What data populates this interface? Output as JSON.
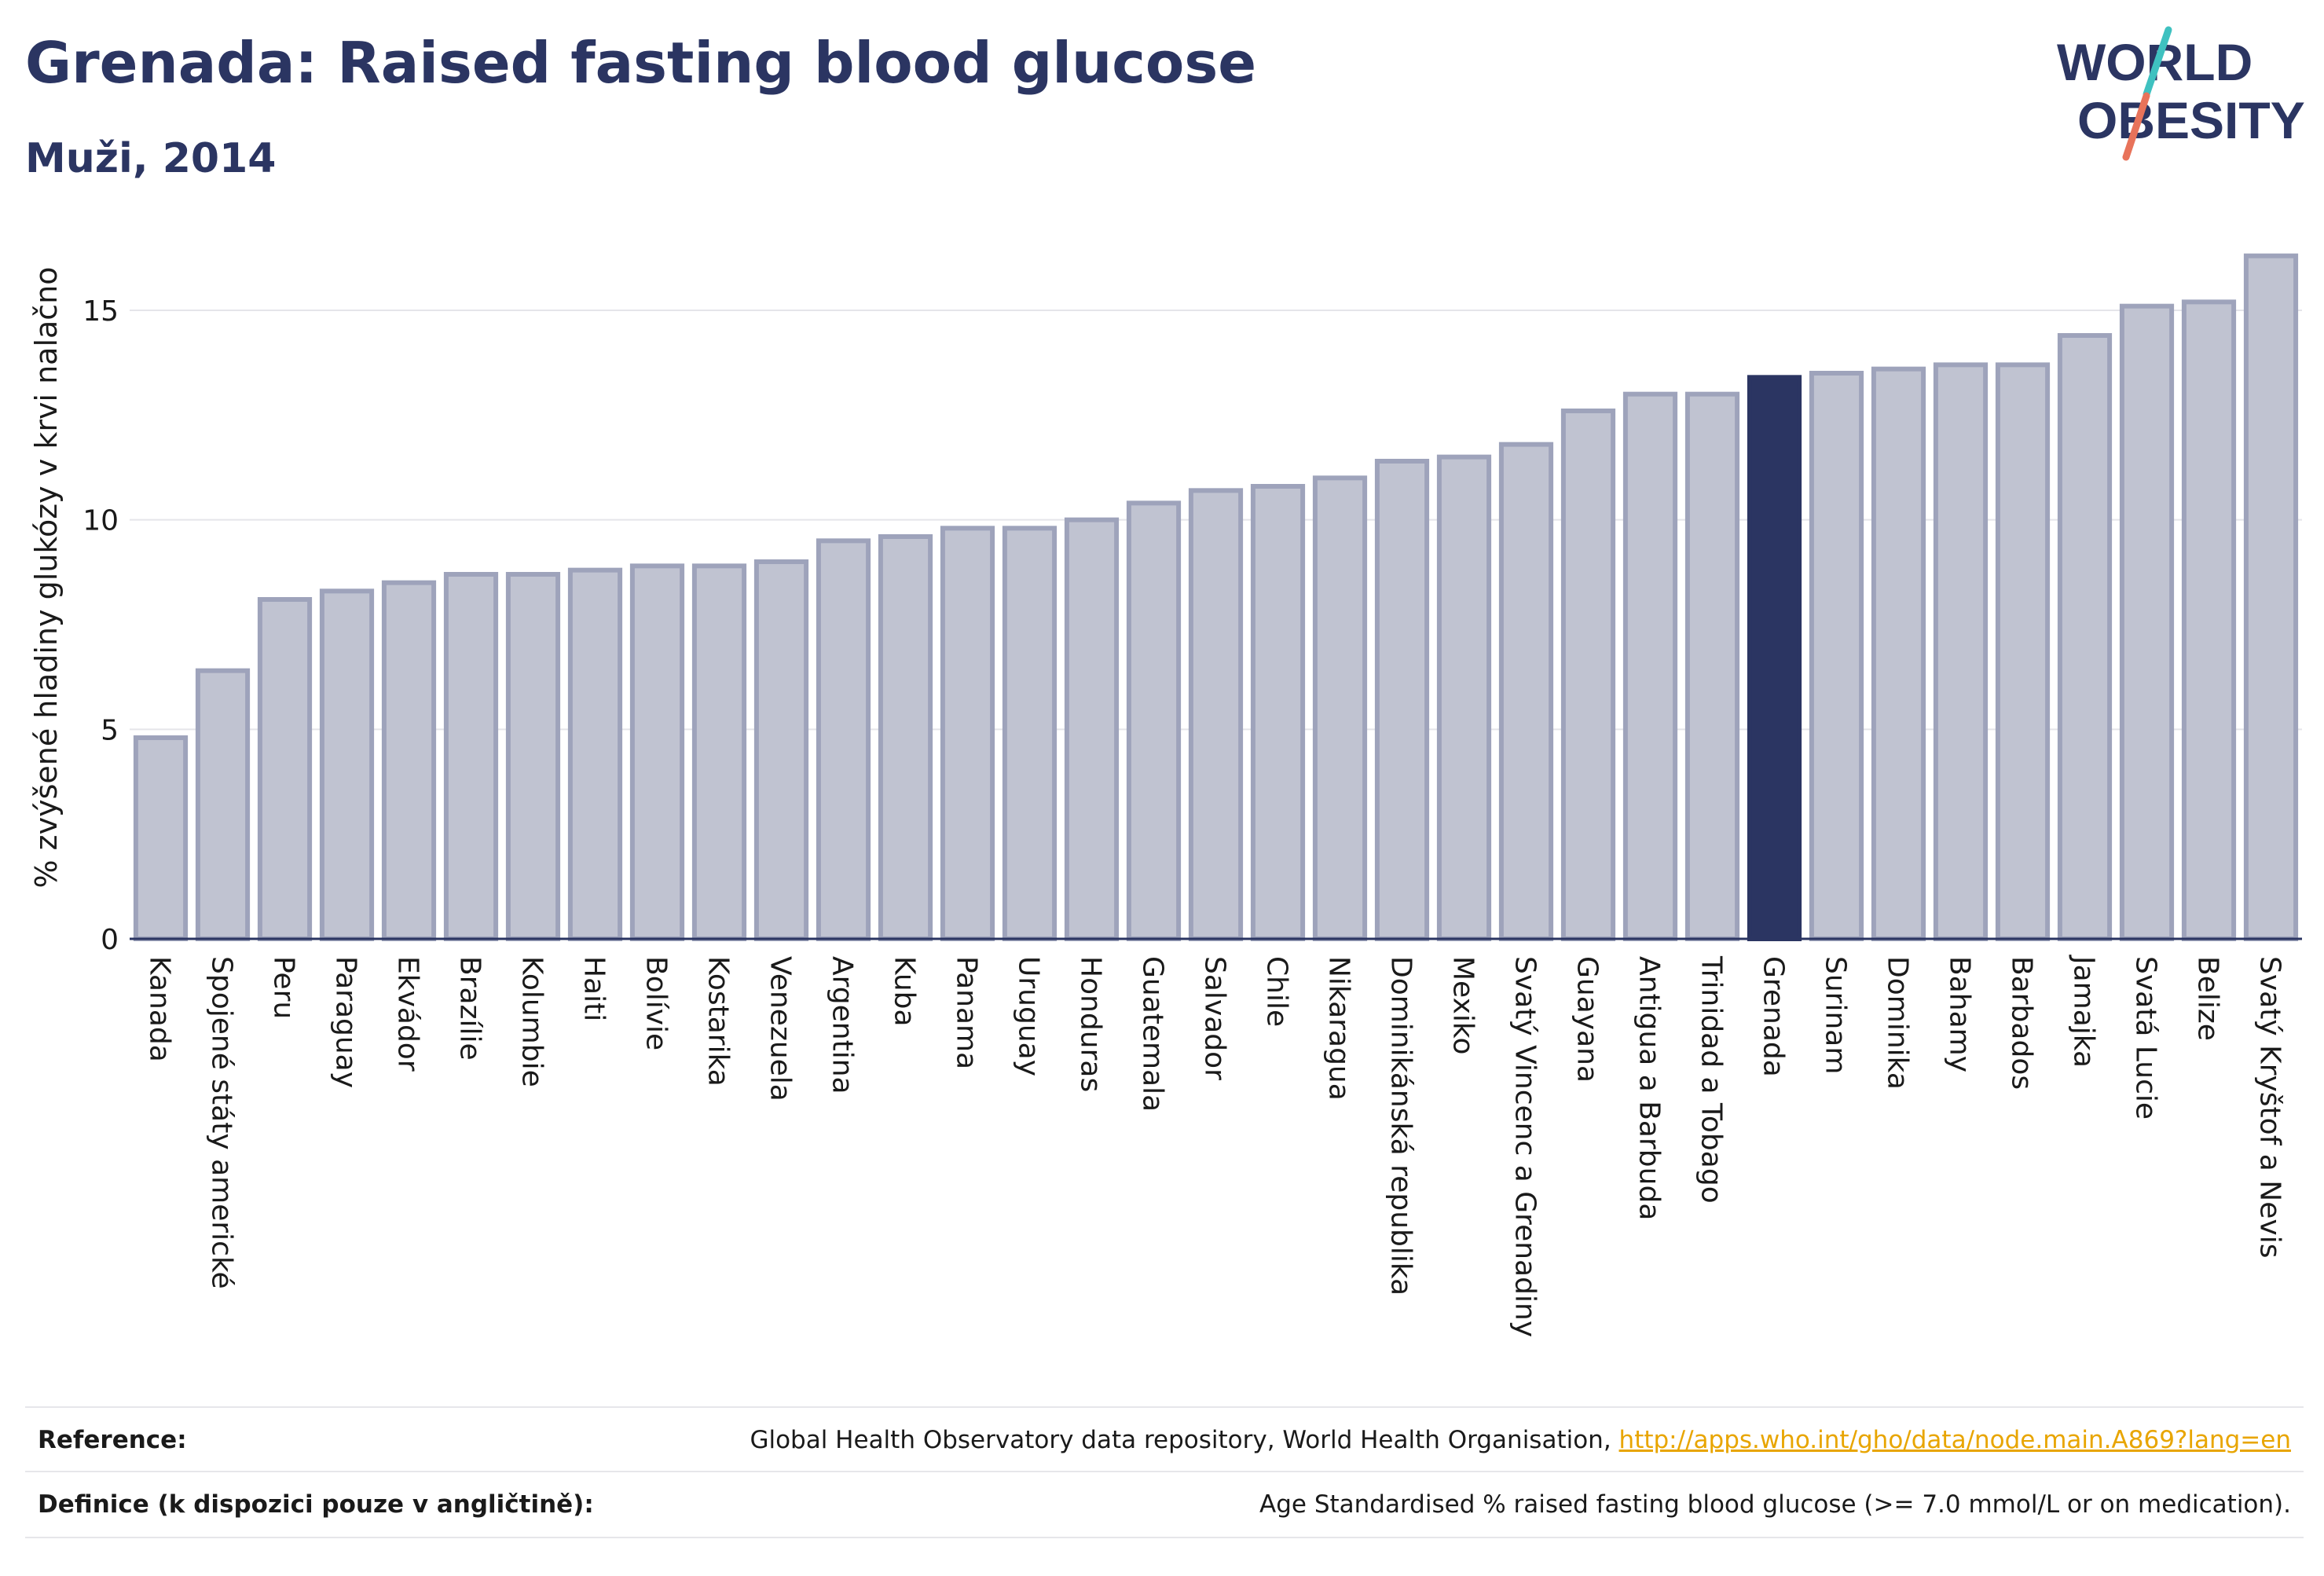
{
  "header": {
    "title": "Grenada: Raised fasting blood glucose",
    "subtitle": "Muži, 2014"
  },
  "logo": {
    "line1": "WORLD",
    "line2": "OBESITY"
  },
  "colors": {
    "bar": "#c0c3d1",
    "bar_stroke": "#9ea3bb",
    "highlight": "#2b3562",
    "gridline": "#e5e5ea",
    "axis": "#2b3562",
    "logo_text": "#2b3562",
    "logo_slash_red": "#e8735a",
    "logo_slash_teal": "#3fc1c0"
  },
  "chart_data": {
    "type": "bar",
    "title": "",
    "xlabel": "",
    "ylabel": "% zvýšené hladiny glukózy v krvi nalačno",
    "ylim": [
      0,
      16.5
    ],
    "yticks": [
      0,
      5,
      10,
      15
    ],
    "grid": true,
    "highlight": "Grenada",
    "categories": [
      "Kanada",
      "Spojené státy americké",
      "Peru",
      "Paraguay",
      "Ekvádor",
      "Brazílie",
      "Kolumbie",
      "Haiti",
      "Bolívie",
      "Kostarika",
      "Venezuela",
      "Argentina",
      "Kuba",
      "Panama",
      "Uruguay",
      "Honduras",
      "Guatemala",
      "Salvador",
      "Chile",
      "Nikaragua",
      "Dominikánská republika",
      "Mexiko",
      "Svatý Vincenc a Grenadiny",
      "Guayana",
      "Antigua a Barbuda",
      "Trinidad a Tobago",
      "Grenada",
      "Surinam",
      "Dominika",
      "Bahamy",
      "Barbados",
      "Jamajka",
      "Svatá Lucie",
      "Belize",
      "Svatý Kryštof a Nevis"
    ],
    "values": [
      4.8,
      6.4,
      8.1,
      8.3,
      8.5,
      8.7,
      8.7,
      8.8,
      8.9,
      8.9,
      9.0,
      9.5,
      9.6,
      9.8,
      9.8,
      10.0,
      10.4,
      10.7,
      10.8,
      11.0,
      11.4,
      11.5,
      11.8,
      12.6,
      13.0,
      13.0,
      13.4,
      13.5,
      13.6,
      13.7,
      13.7,
      14.4,
      15.1,
      15.2,
      16.3
    ]
  },
  "footer": {
    "reference_label": "Reference:",
    "reference_text": "Global Health Observatory data repository, World Health Organisation,",
    "reference_link": "http://apps.who.int/gho/data/node.main.A869?lang=en",
    "definition_label": "Definice (k dispozici pouze v angličtině):",
    "definition_text": "Age Standardised % raised fasting blood glucose (>= 7.0 mmol/L or on medication)."
  }
}
